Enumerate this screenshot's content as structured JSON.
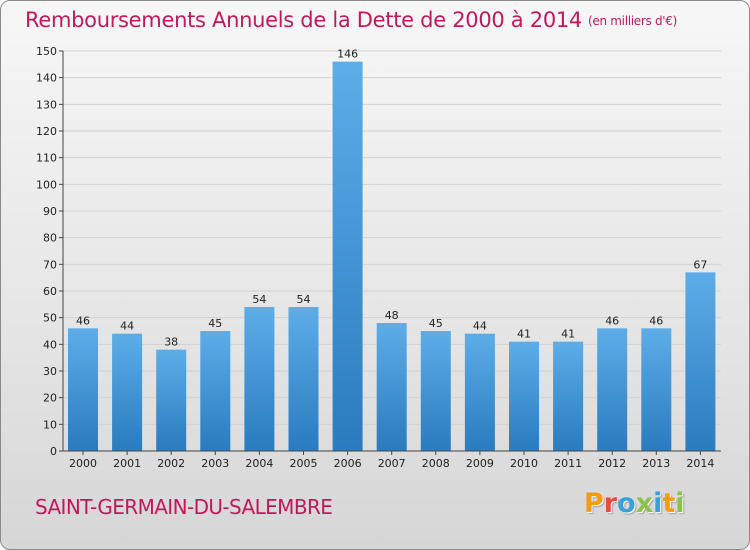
{
  "header": {
    "title": "Remboursements Annuels de la Dette de 2000 à 2014",
    "unit": "(en milliers d'€)"
  },
  "footer": {
    "city": "SAINT-GERMAIN-DU-SALEMBRE",
    "logo": {
      "letters": [
        "P",
        "r",
        "o",
        "x",
        "i",
        "t",
        "i"
      ],
      "colors": [
        "#f39c12",
        "#e74c3c",
        "#3aa0d8",
        "#8bc34a",
        "#3aa0d8",
        "#f39c12",
        "#8bc34a"
      ]
    }
  },
  "colors": {
    "bar_light": "#5dade8",
    "bar_dark": "#2a7bbf",
    "title": "#c2185b"
  },
  "chart_data": {
    "type": "bar",
    "categories": [
      "2000",
      "2001",
      "2002",
      "2003",
      "2004",
      "2005",
      "2006",
      "2007",
      "2008",
      "2009",
      "2010",
      "2011",
      "2012",
      "2013",
      "2014"
    ],
    "values": [
      46,
      44,
      38,
      45,
      54,
      54,
      146,
      48,
      45,
      44,
      41,
      41,
      46,
      46,
      67
    ],
    "ylim": [
      0,
      150
    ],
    "yticks": [
      0,
      10,
      20,
      30,
      40,
      50,
      60,
      70,
      80,
      90,
      100,
      110,
      120,
      130,
      140,
      150
    ],
    "grid": true,
    "data_labels": true
  }
}
